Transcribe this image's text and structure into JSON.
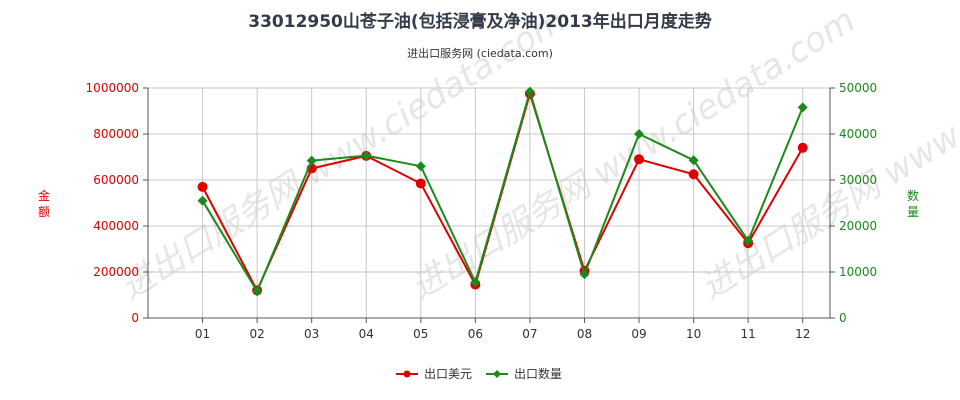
{
  "chart_data": {
    "type": "line",
    "title": "33012950山苍子油(包括浸膏及净油)2013年出口月度走势",
    "subtitle": "进出口服务网 (ciedata.com)",
    "watermark": "进出口服务网 www.ciedata.com",
    "categories": [
      "01",
      "02",
      "03",
      "04",
      "05",
      "06",
      "07",
      "08",
      "09",
      "10",
      "11",
      "12"
    ],
    "left_axis": {
      "label": "金额",
      "ylim": [
        0,
        1000000
      ],
      "ticks": [
        0,
        200000,
        400000,
        600000,
        800000,
        1000000
      ],
      "color": "#e00000"
    },
    "right_axis": {
      "label": "数量",
      "ylim": [
        0,
        50000
      ],
      "ticks": [
        0,
        10000,
        20000,
        30000,
        40000,
        50000
      ],
      "color": "#1a8a1a"
    },
    "series": [
      {
        "name": "出口美元",
        "axis": "left",
        "color": "#e00000",
        "marker": "circle",
        "values": [
          570000,
          120000,
          650000,
          705000,
          585000,
          145000,
          975000,
          205000,
          690000,
          625000,
          325000,
          740000
        ]
      },
      {
        "name": "出口数量",
        "axis": "right",
        "color": "#1a8a1a",
        "marker": "diamond",
        "values": [
          25500,
          5800,
          34200,
          35300,
          33000,
          7800,
          49200,
          9500,
          40000,
          34300,
          16800,
          45800
        ]
      }
    ],
    "grid": true,
    "legend_position": "bottom-center"
  }
}
